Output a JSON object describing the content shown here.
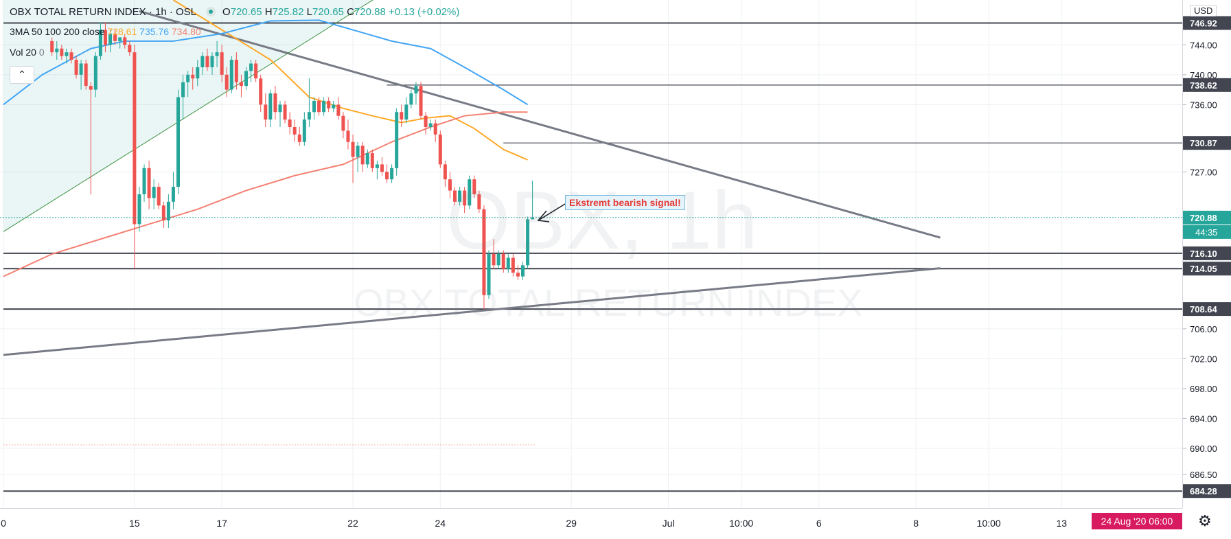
{
  "header": {
    "symbol": "OBX TOTAL RETURN INDEX · 1h · OSL",
    "open_label": "O",
    "open": "720.65",
    "high_label": "H",
    "high": "725.82",
    "low_label": "L",
    "low": "720.65",
    "close_label": "C",
    "close": "720.88",
    "change": "+0.13 (+0.02%)"
  },
  "indicators": {
    "ma_label": "3MA 50 100 200 close",
    "ma50": "728.61",
    "ma100": "735.76",
    "ma200": "734.80",
    "vol_label": "Vol 20",
    "vol_value": "0"
  },
  "collapse_icon": "chevron-up-icon",
  "watermark": {
    "big": "OBX, 1h",
    "small": "OBX TOTAL RETURN INDEX"
  },
  "annotation": {
    "text": "Ekstremt bearish signal!"
  },
  "currency": "USD",
  "date_badge": "24 Aug '20  06:00",
  "settings_icon": "gear-icon",
  "colors": {
    "up": "#26a69a",
    "down": "#ef5350",
    "ma50": "#ffa726",
    "ma100": "#42a5f5",
    "ma200": "#f48072",
    "trendline": "#787b86",
    "hline": "#434651",
    "badge": "#d81b60"
  },
  "chart_data": {
    "type": "candlestick",
    "title": "OBX TOTAL RETURN INDEX",
    "interval": "1h",
    "exchange": "OSL",
    "ylim": [
      682,
      750
    ],
    "y_ticks": [
      {
        "label": "744.00",
        "value": 744
      },
      {
        "label": "740.00",
        "value": 740
      },
      {
        "label": "736.00",
        "value": 736
      },
      {
        "label": "727.00",
        "value": 727
      },
      {
        "label": "706.00",
        "value": 706
      },
      {
        "label": "702.00",
        "value": 702
      },
      {
        "label": "698.00",
        "value": 698
      },
      {
        "label": "694.00",
        "value": 694
      },
      {
        "label": "690.00",
        "value": 690
      },
      {
        "label": "686.50",
        "value": 686.5
      }
    ],
    "x_ticks": [
      {
        "label": "0",
        "index": 0
      },
      {
        "label": "15",
        "index": 27
      },
      {
        "label": "17",
        "index": 45
      },
      {
        "label": "22",
        "index": 72
      },
      {
        "label": "24",
        "index": 90
      },
      {
        "label": "29",
        "index": 117
      },
      {
        "label": "Jul",
        "index": 137
      },
      {
        "label": "10:00",
        "index": 152
      },
      {
        "label": "6",
        "index": 168
      },
      {
        "label": "8",
        "index": 188
      },
      {
        "label": "10:00",
        "index": 203
      },
      {
        "label": "13",
        "index": 218
      }
    ],
    "index_range": [
      0,
      275
    ],
    "price_labels": [
      {
        "label": "746.92",
        "value": 746.92
      },
      {
        "label": "738.62",
        "value": 738.62
      },
      {
        "label": "730.87",
        "value": 730.87
      },
      {
        "label": "720.88",
        "value": 720.88,
        "current": true
      },
      {
        "label": "716.10",
        "value": 716.1
      },
      {
        "label": "714.05",
        "value": 714.05
      },
      {
        "label": "708.64",
        "value": 708.64
      },
      {
        "label": "684.28",
        "value": 684.28
      }
    ],
    "countdown": "44:35",
    "horizontal_lines": [
      {
        "value": 746.92,
        "from": 0
      },
      {
        "value": 738.62,
        "from": 79
      },
      {
        "value": 730.87,
        "from": 103
      },
      {
        "value": 716.1,
        "from": 0
      },
      {
        "value": 714.05,
        "from": 0
      },
      {
        "value": 708.64,
        "from": 0
      },
      {
        "value": 684.28,
        "from": 0
      }
    ],
    "trend_lines": [
      {
        "x1": 0,
        "y1": 702.5,
        "x2": 193,
        "y2": 714.1
      },
      {
        "x1": 28,
        "y1": 748.5,
        "x2": 193,
        "y2": 718.2
      },
      {
        "x1": 0,
        "y1": 719.0,
        "x2": 81,
        "y2": 752.0
      }
    ],
    "ma_series": [
      {
        "name": "MA 50",
        "color": "#ffa726",
        "points": [
          [
            35,
            750
          ],
          [
            45,
            746
          ],
          [
            55,
            742
          ],
          [
            63,
            737
          ],
          [
            70,
            735.5
          ],
          [
            76,
            734.5
          ],
          [
            82,
            733.6
          ],
          [
            87,
            734.2
          ],
          [
            92,
            734.5
          ],
          [
            97,
            732.8
          ],
          [
            103,
            730
          ],
          [
            108,
            728.6
          ]
        ]
      },
      {
        "name": "MA 100",
        "color": "#42a5f5",
        "points": [
          [
            0,
            736
          ],
          [
            8,
            740
          ],
          [
            18,
            743.5
          ],
          [
            25,
            744.5
          ],
          [
            35,
            744.5
          ],
          [
            45,
            745.5
          ],
          [
            55,
            747.2
          ],
          [
            65,
            747.3
          ],
          [
            72,
            746
          ],
          [
            80,
            744.5
          ],
          [
            88,
            743.5
          ],
          [
            95,
            741
          ],
          [
            103,
            738
          ],
          [
            108,
            736
          ]
        ]
      },
      {
        "name": "MA 200",
        "color": "#f48072",
        "points": [
          [
            0,
            713
          ],
          [
            10,
            716
          ],
          [
            20,
            718
          ],
          [
            30,
            720
          ],
          [
            40,
            722
          ],
          [
            50,
            724.5
          ],
          [
            60,
            726.5
          ],
          [
            70,
            728
          ],
          [
            80,
            731
          ],
          [
            88,
            733
          ],
          [
            95,
            734.5
          ],
          [
            103,
            735
          ],
          [
            108,
            735
          ]
        ]
      }
    ],
    "candles": [
      {
        "i": 10,
        "o": 744.5,
        "h": 745.0,
        "l": 742.5,
        "c": 743.0
      },
      {
        "i": 11,
        "o": 743.0,
        "h": 744.5,
        "l": 742.0,
        "c": 743.5
      },
      {
        "i": 12,
        "o": 743.5,
        "h": 744.0,
        "l": 742.0,
        "c": 742.5
      },
      {
        "i": 13,
        "o": 742.5,
        "h": 743.5,
        "l": 741.5,
        "c": 743.0
      },
      {
        "i": 14,
        "o": 743.0,
        "h": 743.5,
        "l": 741.5,
        "c": 742.0
      },
      {
        "i": 15,
        "o": 742.0,
        "h": 742.5,
        "l": 739.5,
        "c": 740.0
      },
      {
        "i": 16,
        "o": 740.0,
        "h": 742.0,
        "l": 738.0,
        "c": 741.5
      },
      {
        "i": 17,
        "o": 741.5,
        "h": 742.0,
        "l": 738.0,
        "c": 738.5
      },
      {
        "i": 18,
        "o": 738.5,
        "h": 739.0,
        "l": 724.0,
        "c": 738.0
      },
      {
        "i": 19,
        "o": 738.0,
        "h": 743.0,
        "l": 737.0,
        "c": 742.5
      },
      {
        "i": 20,
        "o": 742.5,
        "h": 747.0,
        "l": 742.0,
        "c": 746.0
      },
      {
        "i": 21,
        "o": 746.0,
        "h": 747.0,
        "l": 743.0,
        "c": 744.0
      },
      {
        "i": 22,
        "o": 744.0,
        "h": 746.0,
        "l": 743.0,
        "c": 745.5
      },
      {
        "i": 23,
        "o": 745.5,
        "h": 746.0,
        "l": 744.0,
        "c": 744.5
      },
      {
        "i": 24,
        "o": 744.5,
        "h": 745.0,
        "l": 743.5,
        "c": 745.0
      },
      {
        "i": 25,
        "o": 745.0,
        "h": 745.5,
        "l": 743.5,
        "c": 744.0
      },
      {
        "i": 26,
        "o": 744.0,
        "h": 744.5,
        "l": 742.5,
        "c": 743.0
      },
      {
        "i": 27,
        "o": 743.0,
        "h": 744.0,
        "l": 714.0,
        "c": 720.0
      },
      {
        "i": 28,
        "o": 720.0,
        "h": 725.0,
        "l": 719.0,
        "c": 724.0
      },
      {
        "i": 29,
        "o": 724.0,
        "h": 728.0,
        "l": 723.0,
        "c": 727.5
      },
      {
        "i": 30,
        "o": 727.5,
        "h": 728.5,
        "l": 722.0,
        "c": 723.5
      },
      {
        "i": 31,
        "o": 723.5,
        "h": 726.0,
        "l": 722.0,
        "c": 725.0
      },
      {
        "i": 32,
        "o": 725.0,
        "h": 725.5,
        "l": 722.0,
        "c": 722.5
      },
      {
        "i": 33,
        "o": 722.5,
        "h": 723.0,
        "l": 719.5,
        "c": 720.5
      },
      {
        "i": 34,
        "o": 720.5,
        "h": 724.0,
        "l": 719.5,
        "c": 723.0
      },
      {
        "i": 35,
        "o": 723.0,
        "h": 727.0,
        "l": 722.0,
        "c": 725.0
      },
      {
        "i": 36,
        "o": 725.0,
        "h": 738.0,
        "l": 724.0,
        "c": 737.0
      },
      {
        "i": 37,
        "o": 737.0,
        "h": 740.0,
        "l": 734.0,
        "c": 739.0
      },
      {
        "i": 38,
        "o": 739.0,
        "h": 740.5,
        "l": 737.0,
        "c": 740.0
      },
      {
        "i": 39,
        "o": 740.0,
        "h": 741.0,
        "l": 738.0,
        "c": 739.5
      },
      {
        "i": 40,
        "o": 739.5,
        "h": 742.0,
        "l": 738.5,
        "c": 741.0
      },
      {
        "i": 41,
        "o": 741.0,
        "h": 743.0,
        "l": 740.0,
        "c": 742.5
      },
      {
        "i": 42,
        "o": 742.5,
        "h": 743.5,
        "l": 740.5,
        "c": 741.0
      },
      {
        "i": 43,
        "o": 741.0,
        "h": 743.0,
        "l": 740.0,
        "c": 742.5
      },
      {
        "i": 44,
        "o": 742.5,
        "h": 744.5,
        "l": 741.0,
        "c": 743.0
      },
      {
        "i": 45,
        "o": 743.0,
        "h": 744.0,
        "l": 739.0,
        "c": 740.0
      },
      {
        "i": 46,
        "o": 740.0,
        "h": 741.0,
        "l": 737.0,
        "c": 738.0
      },
      {
        "i": 47,
        "o": 738.0,
        "h": 742.5,
        "l": 737.5,
        "c": 742.0
      },
      {
        "i": 48,
        "o": 742.0,
        "h": 743.0,
        "l": 738.0,
        "c": 739.0
      },
      {
        "i": 49,
        "o": 739.0,
        "h": 740.0,
        "l": 737.0,
        "c": 738.5
      },
      {
        "i": 50,
        "o": 738.5,
        "h": 741.0,
        "l": 738.0,
        "c": 740.5
      },
      {
        "i": 51,
        "o": 740.5,
        "h": 742.0,
        "l": 739.0,
        "c": 741.5
      },
      {
        "i": 52,
        "o": 741.5,
        "h": 742.0,
        "l": 739.0,
        "c": 739.5
      },
      {
        "i": 53,
        "o": 739.5,
        "h": 740.0,
        "l": 735.0,
        "c": 736.0
      },
      {
        "i": 54,
        "o": 736.0,
        "h": 737.5,
        "l": 733.0,
        "c": 734.0
      },
      {
        "i": 55,
        "o": 734.0,
        "h": 738.0,
        "l": 733.0,
        "c": 737.5
      },
      {
        "i": 56,
        "o": 737.5,
        "h": 738.5,
        "l": 734.0,
        "c": 735.0
      },
      {
        "i": 57,
        "o": 735.0,
        "h": 736.5,
        "l": 733.0,
        "c": 736.0
      },
      {
        "i": 58,
        "o": 736.0,
        "h": 736.5,
        "l": 733.5,
        "c": 734.0
      },
      {
        "i": 59,
        "o": 734.0,
        "h": 735.0,
        "l": 732.0,
        "c": 733.0
      },
      {
        "i": 60,
        "o": 733.0,
        "h": 734.0,
        "l": 731.0,
        "c": 732.0
      },
      {
        "i": 61,
        "o": 732.0,
        "h": 733.0,
        "l": 730.5,
        "c": 731.0
      },
      {
        "i": 62,
        "o": 731.0,
        "h": 735.0,
        "l": 730.5,
        "c": 734.0
      },
      {
        "i": 63,
        "o": 734.0,
        "h": 739.5,
        "l": 733.0,
        "c": 735.0
      },
      {
        "i": 64,
        "o": 735.0,
        "h": 737.0,
        "l": 734.0,
        "c": 736.5
      },
      {
        "i": 65,
        "o": 736.5,
        "h": 737.0,
        "l": 734.5,
        "c": 735.0
      },
      {
        "i": 66,
        "o": 735.0,
        "h": 737.0,
        "l": 734.5,
        "c": 736.5
      },
      {
        "i": 67,
        "o": 736.5,
        "h": 737.0,
        "l": 735.0,
        "c": 735.5
      },
      {
        "i": 68,
        "o": 735.5,
        "h": 736.5,
        "l": 735.0,
        "c": 736.0
      },
      {
        "i": 69,
        "o": 736.0,
        "h": 737.0,
        "l": 734.0,
        "c": 734.5
      },
      {
        "i": 70,
        "o": 734.5,
        "h": 735.0,
        "l": 731.5,
        "c": 732.5
      },
      {
        "i": 71,
        "o": 732.5,
        "h": 734.0,
        "l": 730.0,
        "c": 731.0
      },
      {
        "i": 72,
        "o": 731.0,
        "h": 732.0,
        "l": 725.5,
        "c": 729.0
      },
      {
        "i": 73,
        "o": 729.0,
        "h": 731.0,
        "l": 727.0,
        "c": 730.5
      },
      {
        "i": 74,
        "o": 730.5,
        "h": 731.0,
        "l": 727.0,
        "c": 728.0
      },
      {
        "i": 75,
        "o": 728.0,
        "h": 730.0,
        "l": 727.5,
        "c": 729.5
      },
      {
        "i": 76,
        "o": 729.5,
        "h": 730.0,
        "l": 727.0,
        "c": 727.5
      },
      {
        "i": 77,
        "o": 727.5,
        "h": 728.5,
        "l": 726.0,
        "c": 728.0
      },
      {
        "i": 78,
        "o": 728.0,
        "h": 729.0,
        "l": 726.5,
        "c": 727.0
      },
      {
        "i": 79,
        "o": 727.0,
        "h": 728.0,
        "l": 725.5,
        "c": 726.0
      },
      {
        "i": 80,
        "o": 726.0,
        "h": 728.0,
        "l": 725.5,
        "c": 727.5
      },
      {
        "i": 81,
        "o": 727.5,
        "h": 735.5,
        "l": 726.5,
        "c": 735.0
      },
      {
        "i": 82,
        "o": 735.0,
        "h": 736.0,
        "l": 733.0,
        "c": 734.0
      },
      {
        "i": 83,
        "o": 734.0,
        "h": 737.0,
        "l": 733.5,
        "c": 736.0
      },
      {
        "i": 84,
        "o": 736.0,
        "h": 738.0,
        "l": 735.5,
        "c": 737.5
      },
      {
        "i": 85,
        "o": 737.5,
        "h": 739.0,
        "l": 736.0,
        "c": 738.5
      },
      {
        "i": 86,
        "o": 738.5,
        "h": 739.0,
        "l": 734.0,
        "c": 734.5
      },
      {
        "i": 87,
        "o": 734.5,
        "h": 735.0,
        "l": 732.0,
        "c": 733.0
      },
      {
        "i": 88,
        "o": 733.0,
        "h": 734.0,
        "l": 732.5,
        "c": 733.5
      },
      {
        "i": 89,
        "o": 733.5,
        "h": 734.0,
        "l": 731.0,
        "c": 732.0
      },
      {
        "i": 90,
        "o": 732.0,
        "h": 732.5,
        "l": 727.5,
        "c": 728.0
      },
      {
        "i": 91,
        "o": 728.0,
        "h": 728.5,
        "l": 725.0,
        "c": 726.0
      },
      {
        "i": 92,
        "o": 726.0,
        "h": 727.0,
        "l": 723.5,
        "c": 724.5
      },
      {
        "i": 93,
        "o": 724.5,
        "h": 725.0,
        "l": 722.5,
        "c": 723.0
      },
      {
        "i": 94,
        "o": 723.0,
        "h": 725.0,
        "l": 722.5,
        "c": 724.5
      },
      {
        "i": 95,
        "o": 724.5,
        "h": 725.0,
        "l": 721.5,
        "c": 722.5
      },
      {
        "i": 96,
        "o": 722.5,
        "h": 726.5,
        "l": 722.0,
        "c": 726.0
      },
      {
        "i": 97,
        "o": 726.0,
        "h": 726.5,
        "l": 723.5,
        "c": 724.0
      },
      {
        "i": 98,
        "o": 724.0,
        "h": 724.5,
        "l": 721.5,
        "c": 722.0
      },
      {
        "i": 99,
        "o": 722.0,
        "h": 722.5,
        "l": 708.6,
        "c": 710.5
      },
      {
        "i": 100,
        "o": 710.5,
        "h": 716.5,
        "l": 710.0,
        "c": 716.0
      },
      {
        "i": 101,
        "o": 716.0,
        "h": 718.0,
        "l": 714.0,
        "c": 714.5
      },
      {
        "i": 102,
        "o": 714.5,
        "h": 716.5,
        "l": 714.0,
        "c": 716.0
      },
      {
        "i": 103,
        "o": 716.0,
        "h": 716.5,
        "l": 713.5,
        "c": 714.0
      },
      {
        "i": 104,
        "o": 714.0,
        "h": 716.0,
        "l": 713.5,
        "c": 715.5
      },
      {
        "i": 105,
        "o": 715.5,
        "h": 716.0,
        "l": 713.0,
        "c": 713.5
      },
      {
        "i": 106,
        "o": 713.5,
        "h": 714.5,
        "l": 712.5,
        "c": 713.0
      },
      {
        "i": 107,
        "o": 713.0,
        "h": 715.0,
        "l": 712.5,
        "c": 714.5
      },
      {
        "i": 108,
        "o": 714.5,
        "h": 721.0,
        "l": 714.0,
        "c": 720.65
      },
      {
        "i": 109,
        "o": 720.65,
        "h": 725.82,
        "l": 720.65,
        "c": 720.88
      }
    ]
  }
}
